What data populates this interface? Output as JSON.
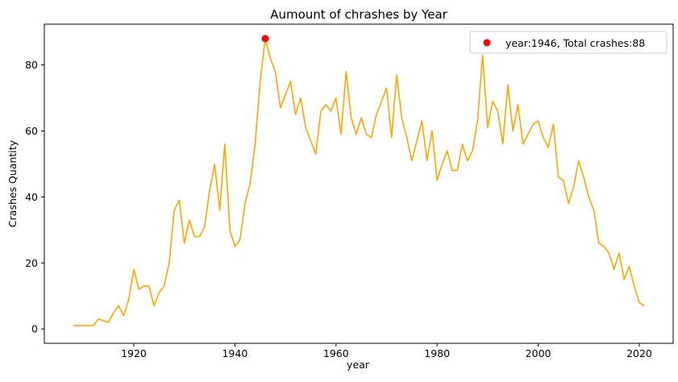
{
  "chart_data": {
    "type": "line",
    "title": "Aumount of chrashes by Year",
    "xlabel": "year",
    "ylabel": "Crashes Quantity",
    "xlim": [
      1902.3,
      2026.7
    ],
    "ylim": [
      -4.35,
      92.35
    ],
    "x_ticks": [
      1920,
      1940,
      1960,
      1980,
      2000,
      2020
    ],
    "y_ticks": [
      0,
      20,
      40,
      60,
      80
    ],
    "grid": false,
    "legend_position": "upper right",
    "series": [
      {
        "color": "#ffa500",
        "x": [
          1908,
          1909,
          1910,
          1911,
          1912,
          1913,
          1914,
          1915,
          1916,
          1917,
          1918,
          1919,
          1920,
          1921,
          1922,
          1923,
          1924,
          1925,
          1926,
          1927,
          1928,
          1929,
          1930,
          1931,
          1932,
          1933,
          1934,
          1935,
          1936,
          1937,
          1938,
          1939,
          1940,
          1941,
          1942,
          1943,
          1944,
          1945,
          1946,
          1947,
          1948,
          1949,
          1950,
          1951,
          1952,
          1953,
          1954,
          1955,
          1956,
          1957,
          1958,
          1959,
          1960,
          1961,
          1962,
          1963,
          1964,
          1965,
          1966,
          1967,
          1968,
          1969,
          1970,
          1971,
          1972,
          1973,
          1974,
          1975,
          1976,
          1977,
          1978,
          1979,
          1980,
          1981,
          1982,
          1983,
          1984,
          1985,
          1986,
          1987,
          1988,
          1989,
          1990,
          1991,
          1992,
          1993,
          1994,
          1995,
          1996,
          1997,
          1998,
          1999,
          2000,
          2001,
          2002,
          2003,
          2004,
          2005,
          2006,
          2007,
          2008,
          2009,
          2010,
          2011,
          2012,
          2013,
          2014,
          2015,
          2016,
          2017,
          2018,
          2019,
          2020,
          2021
        ],
        "y": [
          1,
          1,
          1,
          1,
          1,
          3,
          2.5,
          2,
          5,
          7,
          4,
          9,
          18,
          12,
          13,
          13,
          7,
          11,
          13,
          20,
          36,
          39,
          26,
          33,
          28,
          28,
          31,
          42,
          50,
          36,
          56,
          30,
          25,
          27,
          38,
          44,
          56,
          75,
          88,
          82,
          78,
          67,
          71,
          75,
          65,
          70,
          61,
          57,
          53,
          66,
          68,
          66,
          70,
          59,
          78,
          64,
          59,
          64,
          59,
          58,
          65,
          69,
          73,
          58,
          77,
          64,
          58,
          51,
          57,
          63,
          51,
          60,
          45,
          50,
          54,
          48,
          48,
          56,
          51,
          54,
          63,
          83,
          61,
          69,
          66,
          56,
          74,
          60,
          68,
          56,
          59,
          62,
          63,
          58,
          55,
          62,
          46,
          45,
          38,
          43,
          51,
          46,
          40,
          36,
          26,
          25,
          23,
          18,
          23,
          15,
          19,
          13,
          8,
          7
        ]
      },
      {
        "name": "year:1946, Total crashes:88",
        "type": "scatter",
        "color": "#ff0000",
        "x": [
          1946
        ],
        "y": [
          88
        ]
      }
    ]
  }
}
